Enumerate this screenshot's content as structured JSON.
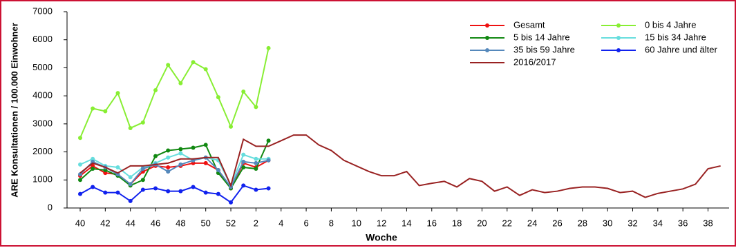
{
  "chart_data": {
    "type": "line",
    "ylabel": "ARE Konsultationen / 100.000 Einwohner",
    "xlabel": "Woche",
    "categories": [
      "40",
      null,
      "42",
      null,
      "44",
      null,
      "46",
      null,
      "48",
      null,
      "50",
      null,
      "52",
      null,
      "2",
      null,
      "4",
      null,
      "6",
      null,
      "8",
      null,
      "10",
      null,
      "12",
      null,
      "14",
      null,
      "16",
      null,
      "18",
      null,
      "20",
      null,
      "22",
      null,
      "24",
      null,
      "26",
      null,
      "28",
      null,
      "30",
      null,
      "32",
      null,
      "34",
      null,
      "36",
      null,
      "38",
      null
    ],
    "ylim": [
      0,
      7000
    ],
    "yticks": [
      0,
      1000,
      2000,
      3000,
      4000,
      5000,
      6000,
      7000
    ],
    "legend": "upper right",
    "series": [
      {
        "name": "Gesamt",
        "color": "#ee1111",
        "markers": true,
        "values": [
          1150,
          1500,
          1250,
          1200,
          850,
          1300,
          1500,
          1450,
          1500,
          1600,
          1600,
          1350,
          700,
          1600,
          1450,
          1700,
          null,
          null,
          null,
          null,
          null,
          null,
          null,
          null,
          null,
          null,
          null,
          null,
          null,
          null,
          null,
          null,
          null,
          null,
          null,
          null,
          null,
          null,
          null,
          null,
          null,
          null,
          null,
          null,
          null,
          null,
          null,
          null,
          null,
          null,
          null,
          null
        ]
      },
      {
        "name": "0 bis 4 Jahre",
        "color": "#88ee33",
        "markers": true,
        "values": [
          2500,
          3550,
          3450,
          4100,
          2850,
          3050,
          4200,
          5100,
          4450,
          5200,
          4950,
          3950,
          2900,
          4150,
          3600,
          5700,
          null,
          null,
          null,
          null,
          null,
          null,
          null,
          null,
          null,
          null,
          null,
          null,
          null,
          null,
          null,
          null,
          null,
          null,
          null,
          null,
          null,
          null,
          null,
          null,
          null,
          null,
          null,
          null,
          null,
          null,
          null,
          null,
          null,
          null,
          null,
          null
        ]
      },
      {
        "name": "5 bis 14 Jahre",
        "color": "#118811",
        "markers": true,
        "values": [
          1000,
          1400,
          1350,
          1150,
          800,
          1000,
          1850,
          2050,
          2100,
          2150,
          2250,
          1250,
          700,
          1450,
          1400,
          2400,
          null,
          null,
          null,
          null,
          null,
          null,
          null,
          null,
          null,
          null,
          null,
          null,
          null,
          null,
          null,
          null,
          null,
          null,
          null,
          null,
          null,
          null,
          null,
          null,
          null,
          null,
          null,
          null,
          null,
          null,
          null,
          null,
          null,
          null,
          null,
          null
        ]
      },
      {
        "name": "15 bis 34 Jahre",
        "color": "#66dddd",
        "markers": true,
        "values": [
          1550,
          1750,
          1500,
          1450,
          1100,
          1450,
          1600,
          1800,
          1950,
          1700,
          1800,
          1700,
          800,
          1900,
          1750,
          1750,
          null,
          null,
          null,
          null,
          null,
          null,
          null,
          null,
          null,
          null,
          null,
          null,
          null,
          null,
          null,
          null,
          null,
          null,
          null,
          null,
          null,
          null,
          null,
          null,
          null,
          null,
          null,
          null,
          null,
          null,
          null,
          null,
          null,
          null,
          null,
          null
        ]
      },
      {
        "name": "35 bis 59 Jahre",
        "color": "#5588bb",
        "markers": true,
        "values": [
          1200,
          1650,
          1450,
          1200,
          850,
          1400,
          1550,
          1300,
          1550,
          1700,
          1800,
          1350,
          750,
          1650,
          1600,
          1700,
          null,
          null,
          null,
          null,
          null,
          null,
          null,
          null,
          null,
          null,
          null,
          null,
          null,
          null,
          null,
          null,
          null,
          null,
          null,
          null,
          null,
          null,
          null,
          null,
          null,
          null,
          null,
          null,
          null,
          null,
          null,
          null,
          null,
          null,
          null,
          null
        ]
      },
      {
        "name": "60 Jahre und älter",
        "color": "#1122ee",
        "markers": true,
        "values": [
          500,
          750,
          550,
          550,
          250,
          650,
          700,
          600,
          600,
          750,
          550,
          500,
          200,
          800,
          650,
          700,
          null,
          null,
          null,
          null,
          null,
          null,
          null,
          null,
          null,
          null,
          null,
          null,
          null,
          null,
          null,
          null,
          null,
          null,
          null,
          null,
          null,
          null,
          null,
          null,
          null,
          null,
          null,
          null,
          null,
          null,
          null,
          null,
          null,
          null,
          null,
          null
        ]
      },
      {
        "name": "2016/2017",
        "color": "#992222",
        "markers": false,
        "values": [
          1250,
          1600,
          1450,
          1250,
          1500,
          1500,
          1550,
          1600,
          1750,
          1750,
          1800,
          1800,
          800,
          2450,
          2200,
          2200,
          2400,
          2600,
          2600,
          2250,
          2050,
          1700,
          1500,
          1300,
          1150,
          1150,
          1300,
          800,
          880,
          950,
          750,
          1050,
          950,
          600,
          750,
          450,
          650,
          550,
          600,
          700,
          750,
          750,
          700,
          550,
          600,
          380,
          520,
          600,
          680,
          850,
          1400,
          1500
        ]
      }
    ]
  }
}
